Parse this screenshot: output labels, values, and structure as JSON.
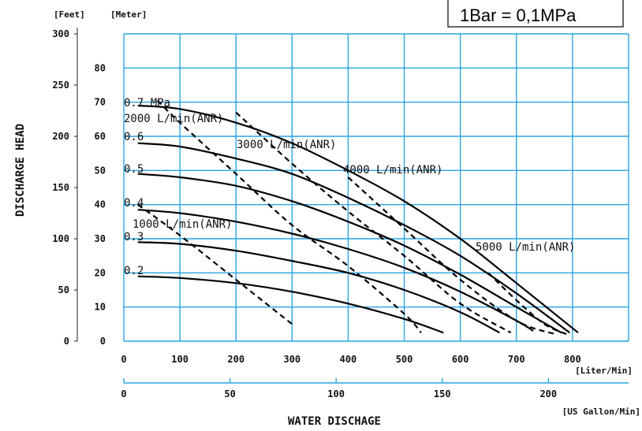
{
  "chart_data": {
    "type": "line",
    "title": "",
    "xlabel": "WATER DISCHAGE",
    "ylabel": "DISCHARGE HEAD",
    "x_unit_primary": "[Liter/Min]",
    "x_unit_secondary": "[US Gallon/Min]",
    "y_unit_left": "[Feet]",
    "y_unit_right": "[Meter]",
    "xlim": [
      0,
      900
    ],
    "ylim_meter": [
      0,
      90
    ],
    "ylim_feet": [
      0,
      300
    ],
    "x_ticks": [
      "0",
      "100",
      "200",
      "300",
      "400",
      "500",
      "600",
      "700",
      "800"
    ],
    "x2_ticks": [
      "0",
      "50",
      "100",
      "150",
      "200"
    ],
    "y_meter_ticks": [
      "0",
      "10",
      "20",
      "30",
      "40",
      "50",
      "60",
      "70",
      "80"
    ],
    "y_feet_ticks": [
      "0",
      "50",
      "100",
      "150",
      "200",
      "250",
      "300"
    ],
    "grid": true,
    "box_text": "1Bar = 0,1MPa",
    "series": [
      {
        "name": "0.7 MPa",
        "style": "solid",
        "x": [
          25,
          100,
          200,
          300,
          400,
          500,
          600,
          700,
          810
        ],
        "y": [
          69,
          68,
          64,
          58,
          50,
          41,
          30,
          17,
          2.5
        ]
      },
      {
        "name": "0.6",
        "style": "solid",
        "x": [
          25,
          100,
          200,
          300,
          400,
          500,
          600,
          700,
          795
        ],
        "y": [
          58,
          57,
          53.5,
          49,
          42,
          34,
          25,
          14,
          2.5
        ]
      },
      {
        "name": "0.5",
        "style": "solid",
        "x": [
          25,
          100,
          200,
          300,
          400,
          500,
          600,
          700,
          780
        ],
        "y": [
          49,
          48,
          45.5,
          41,
          35,
          28,
          19.5,
          10,
          2.5
        ]
      },
      {
        "name": "0.4",
        "style": "solid",
        "x": [
          25,
          100,
          200,
          300,
          400,
          500,
          600,
          700,
          730
        ],
        "y": [
          38.5,
          37.5,
          35,
          31.5,
          27,
          21.5,
          14.5,
          6,
          3
        ]
      },
      {
        "name": "0.3",
        "style": "solid",
        "x": [
          25,
          100,
          200,
          300,
          400,
          500,
          600,
          670
        ],
        "y": [
          29,
          28.5,
          26.5,
          23.5,
          20,
          15,
          8.5,
          2.5
        ]
      },
      {
        "name": "0.2",
        "style": "solid",
        "x": [
          25,
          100,
          200,
          300,
          400,
          500,
          570
        ],
        "y": [
          19,
          18.5,
          17,
          14.5,
          11,
          6.5,
          2.5
        ]
      },
      {
        "name": "1000 L/min(ANR)",
        "style": "dashed",
        "x": [
          25,
          100,
          200,
          300
        ],
        "y": [
          40,
          31,
          18,
          5
        ]
      },
      {
        "name": "2000 L/min(ANR)",
        "style": "dashed",
        "x": [
          60,
          100,
          200,
          300,
          400,
          500,
          530
        ],
        "y": [
          70.5,
          64,
          49,
          34,
          22,
          8,
          2.5
        ]
      },
      {
        "name": "3000 L/min(ANR)",
        "style": "dashed",
        "x": [
          200,
          300,
          400,
          500,
          600,
          690
        ],
        "y": [
          67,
          52,
          38,
          25,
          11,
          2.5
        ]
      },
      {
        "name": "4000 L/min(ANR)",
        "style": "dashed",
        "x": [
          400,
          500,
          600,
          700,
          770
        ],
        "y": [
          48,
          33,
          18,
          6,
          2
        ]
      },
      {
        "name": "5000 L/min(ANR)",
        "style": "dashed",
        "x": [
          650,
          700,
          750,
          790
        ],
        "y": [
          20,
          12,
          5,
          2
        ]
      }
    ],
    "labels": [
      {
        "text": "0.7 MPa",
        "series": "0.7 MPa"
      },
      {
        "text": "0.6",
        "series": "0.6"
      },
      {
        "text": "0.5",
        "series": "0.5"
      },
      {
        "text": "0.4",
        "series": "0.4"
      },
      {
        "text": "0.3",
        "series": "0.3"
      },
      {
        "text": "0.2",
        "series": "0.2"
      },
      {
        "text": "1000 L/min(ANR)",
        "series": "1000 L/min(ANR)"
      },
      {
        "text": "2000 L/min(ANR)",
        "series": "2000 L/min(ANR)"
      },
      {
        "text": "3000 L/min(ANR)",
        "series": "3000 L/min(ANR)"
      },
      {
        "text": "4000 L/min(ANR)",
        "series": "4000 L/min(ANR)"
      },
      {
        "text": "5000 L/min(ANR)",
        "series": "5000 L/min(ANR)"
      }
    ]
  }
}
